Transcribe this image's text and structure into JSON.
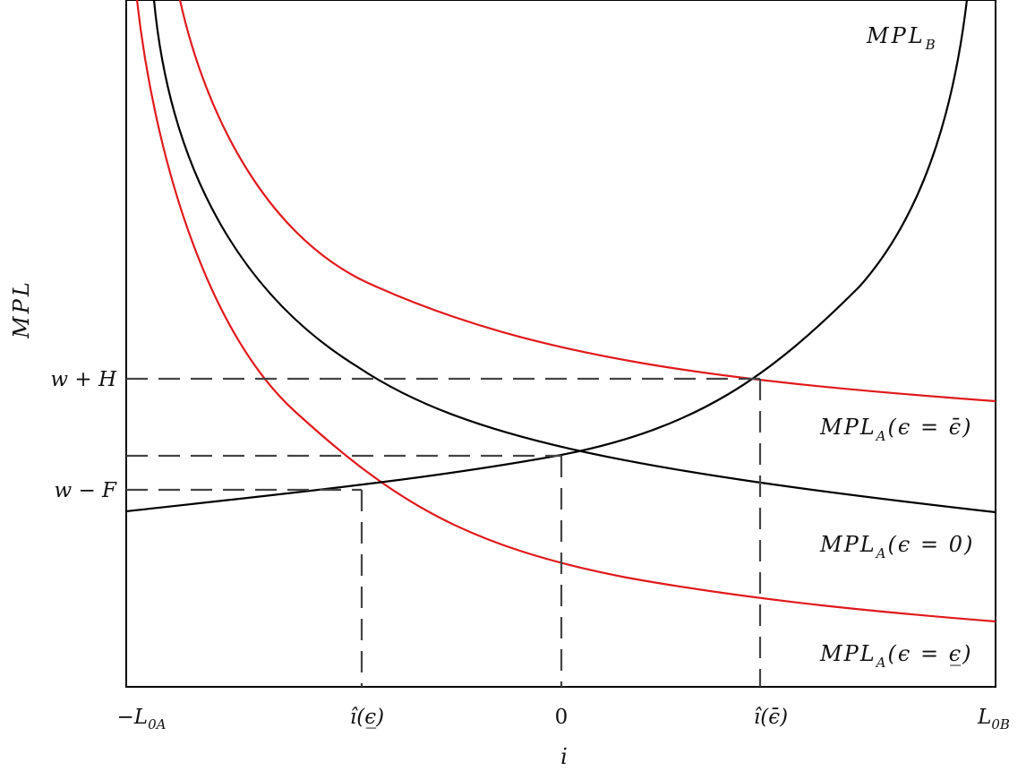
{
  "y_axis": {
    "label": "MPL"
  },
  "x_axis": {
    "label": "i"
  },
  "y_ticks": [
    {
      "id": "w-plus-h",
      "label": "w + H"
    },
    {
      "id": "w-minus-f",
      "label": "w − F"
    }
  ],
  "x_ticks": [
    {
      "id": "neg-l0a",
      "label": "−L",
      "sub": "0A"
    },
    {
      "id": "ihat-low",
      "label": "î(ϵ̲)"
    },
    {
      "id": "zero",
      "label": "0"
    },
    {
      "id": "ihat-high",
      "label": "î(ϵ̄)"
    },
    {
      "id": "l0b",
      "label": "L",
      "sub": "0B"
    }
  ],
  "curves": [
    {
      "id": "mpl-b",
      "label": "MPL",
      "sub": "B",
      "suffix": "",
      "color": "#000000"
    },
    {
      "id": "mpl-a-high",
      "label": "MPL",
      "sub": "A",
      "suffix": "(ϵ = ϵ̄)",
      "color": "#e0191c"
    },
    {
      "id": "mpl-a-zero",
      "label": "MPL",
      "sub": "A",
      "suffix": "(ϵ = 0)",
      "color": "#000000"
    },
    {
      "id": "mpl-a-low",
      "label": "MPL",
      "sub": "A",
      "suffix": "(ϵ = ϵ̲)",
      "color": "#e0191c"
    }
  ],
  "colors": {
    "axis": "#000000",
    "guide": "#444444",
    "red_curve": "#e0191c",
    "black_curve": "#000000"
  }
}
